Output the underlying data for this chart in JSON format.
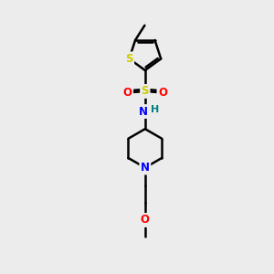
{
  "background_color": "#ececec",
  "bond_color": "#000000",
  "bond_width": 1.8,
  "atom_colors": {
    "S": "#cccc00",
    "O": "#ff0000",
    "N": "#0000ff",
    "H": "#008080"
  },
  "figsize": [
    3.0,
    3.0
  ],
  "dpi": 100
}
